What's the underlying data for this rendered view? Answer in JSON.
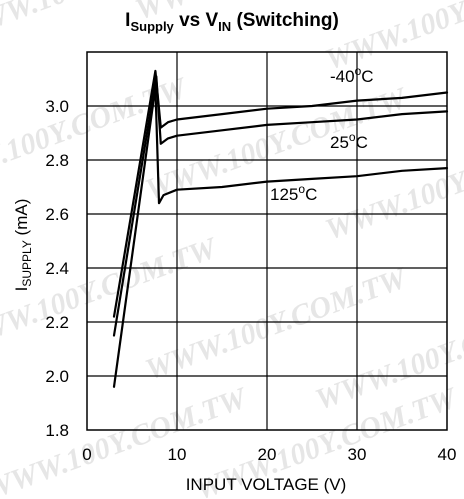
{
  "watermark": "WWW.100Y.COM.TW",
  "chart_data": {
    "type": "line",
    "title": {
      "main_i": "I",
      "main_i_sub": "Supply",
      "vs": " vs V",
      "vs_sub": "IN",
      "rest": " (Switching)"
    },
    "xlabel": "INPUT VOLTAGE (V)",
    "ylabel": {
      "prefix": "I",
      "sub": "SUPPLY",
      "suffix": " (mA)"
    },
    "xlim": [
      0,
      40
    ],
    "ylim": [
      1.8,
      3.2
    ],
    "xticks": [
      0,
      10,
      20,
      30,
      40
    ],
    "yticks": [
      1.8,
      2.0,
      2.2,
      2.4,
      2.6,
      2.8,
      3.0
    ],
    "ytick_labels": [
      "1.8",
      "2.0",
      "2.2",
      "2.4",
      "2.6",
      "2.8",
      "3.0"
    ],
    "grid": true,
    "series": [
      {
        "name": "-40°C",
        "label_parts": [
          "-40",
          "o",
          "C"
        ],
        "x": [
          3.0,
          7.6,
          8.2,
          9.0,
          10,
          15,
          20,
          25,
          30,
          35,
          40
        ],
        "y": [
          2.22,
          3.13,
          2.92,
          2.94,
          2.95,
          2.97,
          2.99,
          3.0,
          3.02,
          3.03,
          3.05
        ],
        "color": "#000000"
      },
      {
        "name": "25°C",
        "label_parts": [
          "25",
          "o",
          "C"
        ],
        "x": [
          3.0,
          7.7,
          8.2,
          9.0,
          10,
          15,
          20,
          25,
          30,
          35,
          40
        ],
        "y": [
          2.15,
          3.11,
          2.86,
          2.88,
          2.89,
          2.91,
          2.93,
          2.94,
          2.95,
          2.97,
          2.98
        ],
        "color": "#000000"
      },
      {
        "name": "125°C",
        "label_parts": [
          "125",
          "o",
          "C"
        ],
        "x": [
          3.0,
          7.6,
          8.0,
          8.5,
          10,
          15,
          20,
          25,
          30,
          35,
          40
        ],
        "y": [
          1.96,
          3.07,
          2.64,
          2.67,
          2.69,
          2.7,
          2.72,
          2.73,
          2.74,
          2.76,
          2.77
        ],
        "color": "#000000"
      }
    ]
  }
}
